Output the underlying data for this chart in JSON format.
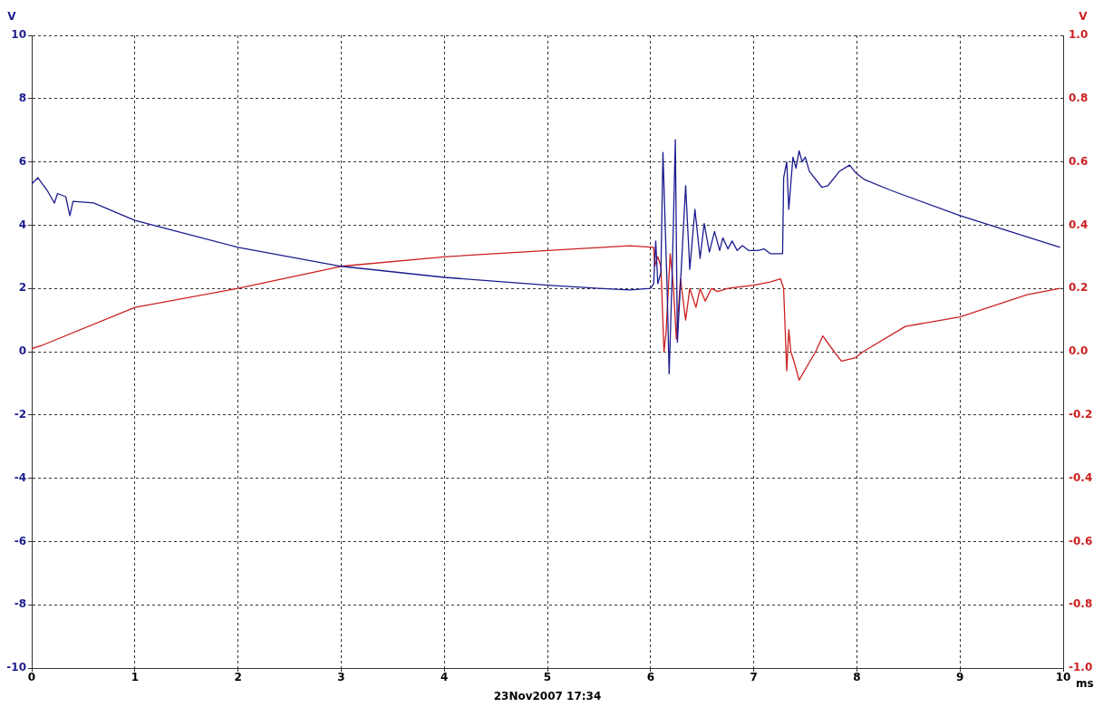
{
  "chart_data": {
    "type": "line",
    "xlabel": "ms",
    "ylabel": "V",
    "y2label": "V",
    "annotations": [
      "23Nov2007 17:34"
    ],
    "xlim": [
      0,
      10
    ],
    "xticks": [
      0,
      1,
      2,
      3,
      4,
      5,
      6,
      7,
      8,
      9,
      10
    ],
    "ylim": [
      -10,
      10
    ],
    "yticks": [
      -10,
      -8,
      -6,
      -4,
      -2,
      0,
      2,
      4,
      6,
      8,
      10
    ],
    "y2lim": [
      -1.0,
      1.0
    ],
    "y2ticks": [
      {
        "value": -1.0,
        "label": "-1.0"
      },
      {
        "value": -0.8,
        "label": "-0.8"
      },
      {
        "value": -0.6,
        "label": "-0.6"
      },
      {
        "value": -0.4,
        "label": "-0.4"
      },
      {
        "value": -0.2,
        "label": "-0.2"
      },
      {
        "value": 0,
        "label": "0.0"
      },
      {
        "value": 0.2,
        "label": "0.2"
      },
      {
        "value": 0.4,
        "label": "0.4"
      },
      {
        "value": 0.6,
        "label": "0.6"
      },
      {
        "value": 0.8,
        "label": "0.8"
      },
      {
        "value": 1.0,
        "label": "1.0"
      }
    ],
    "grid": true,
    "legend": false,
    "marker": "none",
    "line_style": "solid",
    "series": [
      {
        "color": "#1c1c8f",
        "x": [
          0,
          0.06,
          0.15,
          0.22,
          0.25,
          0.33,
          0.37,
          0.4,
          0.6,
          1.0,
          2.0,
          3.0,
          4.0,
          5.0,
          5.5,
          5.8,
          6.0,
          6.03,
          6.05,
          6.07,
          6.1,
          6.12,
          6.16,
          6.18,
          6.21,
          6.24,
          6.26,
          6.34,
          6.38,
          6.43,
          6.48,
          6.52,
          6.57,
          6.62,
          6.67,
          6.7,
          6.75,
          6.79,
          6.84,
          6.89,
          6.95,
          7.04,
          7.1,
          7.16,
          7.28,
          7.29,
          7.32,
          7.34,
          7.38,
          7.41,
          7.44,
          7.47,
          7.5,
          7.54,
          7.66,
          7.72,
          7.83,
          7.93,
          7.99,
          8.07,
          8.33,
          9.0,
          9.97
        ],
        "values": [
          5.3,
          5.5,
          5.1,
          4.7,
          5.0,
          4.9,
          4.3,
          4.75,
          4.7,
          4.15,
          3.3,
          2.7,
          2.35,
          2.1,
          2.0,
          1.95,
          2.0,
          2.15,
          3.5,
          2.15,
          2.5,
          6.3,
          2.05,
          -0.7,
          2.5,
          6.7,
          0.3,
          5.25,
          2.6,
          4.5,
          2.95,
          4.05,
          3.15,
          3.8,
          3.2,
          3.6,
          3.25,
          3.5,
          3.2,
          3.35,
          3.2,
          3.2,
          3.25,
          3.1,
          3.1,
          5.5,
          6.0,
          4.5,
          6.15,
          5.8,
          6.35,
          6.0,
          6.15,
          5.7,
          5.2,
          5.25,
          5.7,
          5.9,
          5.65,
          5.45,
          5.1,
          4.3,
          3.3
        ]
      },
      {
        "color": "#cc2020",
        "axis": "y2",
        "x": [
          0,
          0.1,
          1.0,
          2.0,
          3.0,
          4.0,
          5.0,
          5.8,
          6.03,
          6.04,
          6.07,
          6.1,
          6.13,
          6.15,
          6.19,
          6.22,
          6.25,
          6.29,
          6.34,
          6.38,
          6.44,
          6.48,
          6.53,
          6.59,
          6.65,
          6.75,
          7.0,
          7.16,
          7.26,
          7.29,
          7.32,
          7.34,
          7.36,
          7.39,
          7.44,
          7.51,
          7.6,
          7.67,
          7.78,
          7.85,
          7.98,
          8.06,
          8.47,
          9.0,
          9.65,
          9.97
        ],
        "values": [
          0.01,
          0.02,
          0.14,
          0.2,
          0.27,
          0.3,
          0.32,
          0.335,
          0.33,
          0.27,
          0.3,
          0.27,
          0.0,
          0.06,
          0.31,
          0.21,
          0.04,
          0.23,
          0.1,
          0.2,
          0.14,
          0.2,
          0.16,
          0.2,
          0.19,
          0.2,
          0.21,
          0.22,
          0.23,
          0.2,
          -0.06,
          0.07,
          0.0,
          -0.03,
          -0.09,
          -0.05,
          0.0,
          0.05,
          0.0,
          -0.03,
          -0.02,
          0.0,
          0.08,
          0.11,
          0.18,
          0.2
        ]
      }
    ]
  }
}
